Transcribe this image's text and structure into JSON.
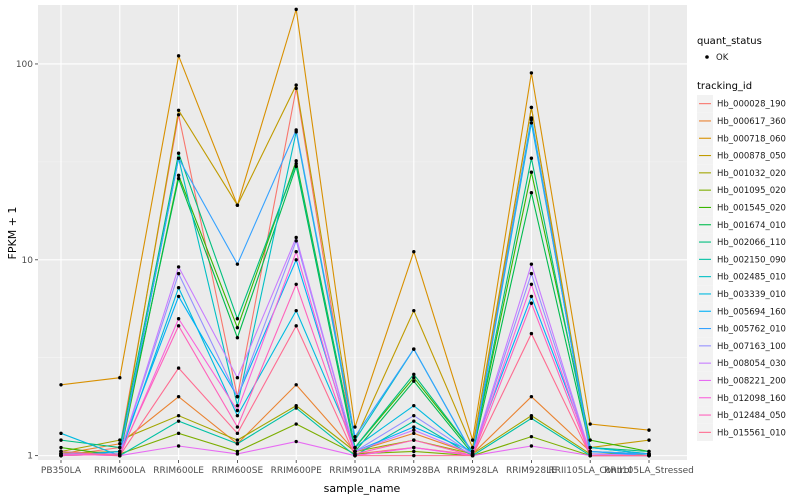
{
  "chart_data": {
    "type": "line",
    "xlabel": "sample_name",
    "ylabel": "FPKM + 1",
    "yscale": "log10",
    "ylim": [
      0.95,
      200
    ],
    "yticks": [
      1,
      10,
      100
    ],
    "grid": true,
    "legend_position": "right",
    "categories": [
      "PB350LA",
      "RRIM600LA",
      "RRIM600LE",
      "RRIM600SE",
      "RRIM600PE",
      "RRIM901LA",
      "RRIM928BA",
      "RRIM928LA",
      "RRIM928LE",
      "RRII105LA_Control",
      "RRII105LA_Stressed"
    ],
    "shape_legend": {
      "title": "quant_status",
      "items": [
        "OK"
      ]
    },
    "color_legend_title": "tracking_id",
    "series": [
      {
        "name": "Hb_000028_190",
        "color": "#F8766D",
        "values": [
          1.0,
          1.1,
          55,
          2.0,
          75,
          1.02,
          1.1,
          1.01,
          60,
          1.0,
          1.02
        ]
      },
      {
        "name": "Hb_000617_360",
        "color": "#EA8331",
        "values": [
          1.02,
          1.15,
          2.0,
          1.15,
          2.3,
          1.05,
          1.3,
          1.02,
          2.0,
          1.05,
          1.02
        ]
      },
      {
        "name": "Hb_000718_060",
        "color": "#D89000",
        "values": [
          2.3,
          2.5,
          110,
          19,
          190,
          1.4,
          11,
          1.2,
          90,
          1.45,
          1.35
        ]
      },
      {
        "name": "Hb_000878_050",
        "color": "#C09B00",
        "values": [
          1.03,
          1.05,
          58,
          19,
          78,
          1.2,
          5.5,
          1.1,
          60,
          1.1,
          1.2
        ]
      },
      {
        "name": "Hb_001032_020",
        "color": "#A3A500",
        "values": [
          1.05,
          1.2,
          1.6,
          1.2,
          1.8,
          1.05,
          1.2,
          1.02,
          1.6,
          1.02,
          1.02
        ]
      },
      {
        "name": "Hb_001095_020",
        "color": "#7CAE00",
        "values": [
          1.0,
          1.02,
          1.3,
          1.05,
          1.45,
          1.02,
          1.05,
          1.0,
          1.25,
          1.0,
          1.0
        ]
      },
      {
        "name": "Hb_001545_020",
        "color": "#39B600",
        "values": [
          1.1,
          1.0,
          27,
          4.5,
          32,
          1.1,
          2.5,
          1.05,
          28,
          1.2,
          1.05
        ]
      },
      {
        "name": "Hb_001674_010",
        "color": "#00BB4E",
        "values": [
          1.0,
          1.05,
          26,
          4.0,
          30,
          1.05,
          2.4,
          1.02,
          22,
          1.1,
          1.02
        ]
      },
      {
        "name": "Hb_002066_110",
        "color": "#00BF7D",
        "values": [
          1.2,
          1.1,
          35,
          5.0,
          31,
          1.1,
          2.6,
          1.05,
          33,
          1.1,
          1.05
        ]
      },
      {
        "name": "Hb_002150_090",
        "color": "#00C1A3",
        "values": [
          1.05,
          1.0,
          1.5,
          1.15,
          1.75,
          1.0,
          1.5,
          1.0,
          1.55,
          1.0,
          1.0
        ]
      },
      {
        "name": "Hb_002485_010",
        "color": "#00BFC4",
        "values": [
          1.02,
          1.02,
          33,
          1.8,
          45,
          1.2,
          3.5,
          1.02,
          53,
          1.05,
          1.02
        ]
      },
      {
        "name": "Hb_003339_010",
        "color": "#00BAE0",
        "values": [
          1.3,
          1.0,
          7.2,
          1.6,
          5.5,
          1.1,
          1.8,
          1.02,
          50,
          1.1,
          1.02
        ]
      },
      {
        "name": "Hb_005694_160",
        "color": "#00B0F6",
        "values": [
          1.0,
          1.05,
          6.5,
          2.0,
          10,
          1.05,
          1.4,
          1.05,
          6.5,
          1.05,
          1.0
        ]
      },
      {
        "name": "Hb_005762_010",
        "color": "#35A2FF",
        "values": [
          1.02,
          1.02,
          33,
          9.5,
          46,
          1.25,
          3.5,
          1.02,
          52,
          1.05,
          1.02
        ]
      },
      {
        "name": "Hb_007163_100",
        "color": "#9590FF",
        "values": [
          1.02,
          1.02,
          8.5,
          2.0,
          12.5,
          1.05,
          1.6,
          1.02,
          8.5,
          1.02,
          1.0
        ]
      },
      {
        "name": "Hb_008054_030",
        "color": "#C77CFF",
        "values": [
          1.0,
          1.02,
          9.2,
          2.5,
          13,
          1.05,
          1.35,
          1.02,
          9.5,
          1.02,
          1.0
        ]
      },
      {
        "name": "Hb_008221_200",
        "color": "#E76BF3",
        "values": [
          1.02,
          1.0,
          1.12,
          1.02,
          1.18,
          1.0,
          1.1,
          1.0,
          1.12,
          1.0,
          1.0
        ]
      },
      {
        "name": "Hb_012098_160",
        "color": "#FA62DB",
        "values": [
          1.02,
          1.0,
          5.0,
          1.7,
          11,
          1.0,
          1.1,
          1.0,
          7.5,
          1.0,
          1.0
        ]
      },
      {
        "name": "Hb_012484_050",
        "color": "#FF62BC",
        "values": [
          1.0,
          1.02,
          4.6,
          1.4,
          7.5,
          1.02,
          1.2,
          1.0,
          6.0,
          1.0,
          1.0
        ]
      },
      {
        "name": "Hb_015561_010",
        "color": "#FF6C91",
        "values": [
          1.05,
          1.0,
          2.8,
          1.3,
          4.6,
          1.0,
          1.0,
          1.0,
          4.2,
          1.0,
          1.0
        ]
      }
    ]
  }
}
